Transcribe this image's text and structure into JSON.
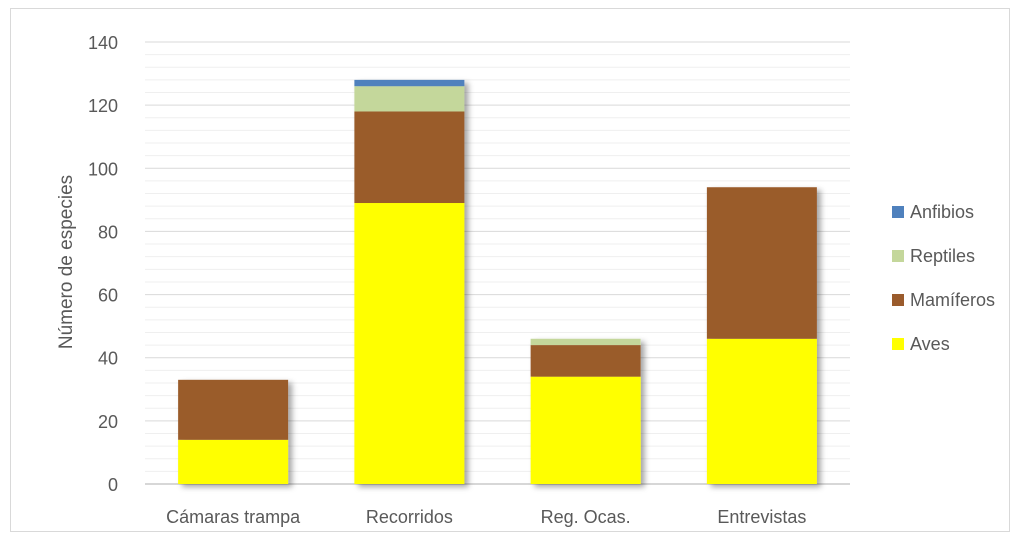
{
  "chart_data": {
    "type": "bar",
    "stacked": true,
    "title": "",
    "xlabel": "",
    "ylabel": "Número de especies",
    "ylim": [
      0,
      140
    ],
    "yticks": [
      0,
      20,
      40,
      60,
      80,
      100,
      120,
      140
    ],
    "grid": true,
    "legend_position": "right",
    "categories": [
      "Cámaras trampa",
      "Recorridos",
      "Reg. Ocas.",
      "Entrevistas"
    ],
    "series": [
      {
        "name": "Aves",
        "color": "#ffff00",
        "values": [
          14,
          89,
          34,
          46
        ]
      },
      {
        "name": "Mamíferos",
        "color": "#9a5b2c",
        "values": [
          19,
          29,
          10,
          48
        ]
      },
      {
        "name": "Reptiles",
        "color": "#c4d79b",
        "values": [
          0,
          8,
          2,
          0
        ]
      },
      {
        "name": "Anfibios",
        "color": "#4f81bd",
        "values": [
          0,
          2,
          0,
          0
        ]
      }
    ]
  }
}
